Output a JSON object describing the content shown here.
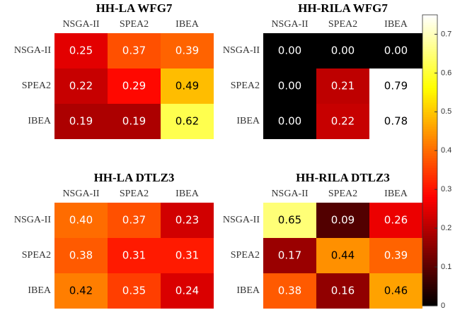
{
  "chart_data": [
    {
      "type": "heatmap",
      "title": "HH-LA WFG7",
      "colormap": "hot",
      "x_categories": [
        "NSGA-II",
        "SPEA2",
        "IBEA"
      ],
      "y_categories": [
        "NSGA-II",
        "SPEA2",
        "IBEA"
      ],
      "values": [
        [
          0.25,
          0.37,
          0.39
        ],
        [
          0.22,
          0.29,
          0.49
        ],
        [
          0.19,
          0.19,
          0.62
        ]
      ],
      "value_labels": [
        [
          "0.25",
          "0.37",
          "0.39"
        ],
        [
          "0.22",
          "0.29",
          "0.49"
        ],
        [
          "0.19",
          "0.19",
          "0.62"
        ]
      ]
    },
    {
      "type": "heatmap",
      "title": "HH-RILA WFG7",
      "colormap": "hot",
      "x_categories": [
        "NSGA-II",
        "SPEA2",
        "IBEA"
      ],
      "y_categories": [
        "NSGA-II",
        "SPEA2",
        "IBEA"
      ],
      "values": [
        [
          0,
          0,
          0
        ],
        [
          0,
          0.21,
          0.79
        ],
        [
          0,
          0.22,
          0.78
        ]
      ],
      "value_labels": [
        [
          "0.00",
          "0.00",
          "0.00"
        ],
        [
          "0.00",
          "0.21",
          "0.79"
        ],
        [
          "0.00",
          "0.22",
          "0.78"
        ]
      ]
    },
    {
      "type": "heatmap",
      "title": "HH-LA DTLZ3",
      "colormap": "hot",
      "x_categories": [
        "NSGA-II",
        "SPEA2",
        "IBEA"
      ],
      "y_categories": [
        "NSGA-II",
        "SPEA2",
        "IBEA"
      ],
      "values": [
        [
          0.4,
          0.37,
          0.23
        ],
        [
          0.38,
          0.31,
          0.31
        ],
        [
          0.42,
          0.35,
          0.24
        ]
      ],
      "value_labels": [
        [
          "0.40",
          "0.37",
          "0.23"
        ],
        [
          "0.38",
          "0.31",
          "0.31"
        ],
        [
          "0.42",
          "0.35",
          "0.24"
        ]
      ]
    },
    {
      "type": "heatmap",
      "title": "HH-RILA DTLZ3",
      "colormap": "hot",
      "x_categories": [
        "NSGA-II",
        "SPEA2",
        "IBEA"
      ],
      "y_categories": [
        "NSGA-II",
        "SPEA2",
        "IBEA"
      ],
      "values": [
        [
          0.65,
          0.09,
          0.26
        ],
        [
          0.17,
          0.44,
          0.39
        ],
        [
          0.38,
          0.16,
          0.46
        ]
      ],
      "value_labels": [
        [
          "0.65",
          "0.09",
          "0.26"
        ],
        [
          "0.17",
          "0.44",
          "0.39"
        ],
        [
          "0.38",
          "0.16",
          "0.46"
        ]
      ]
    },
    {
      "type": "colorbar",
      "colormap": "hot",
      "clim": [
        0,
        0.75
      ],
      "ticks": [
        0,
        0.1,
        0.2,
        0.3,
        0.4,
        0.5,
        0.6,
        0.7
      ]
    }
  ]
}
